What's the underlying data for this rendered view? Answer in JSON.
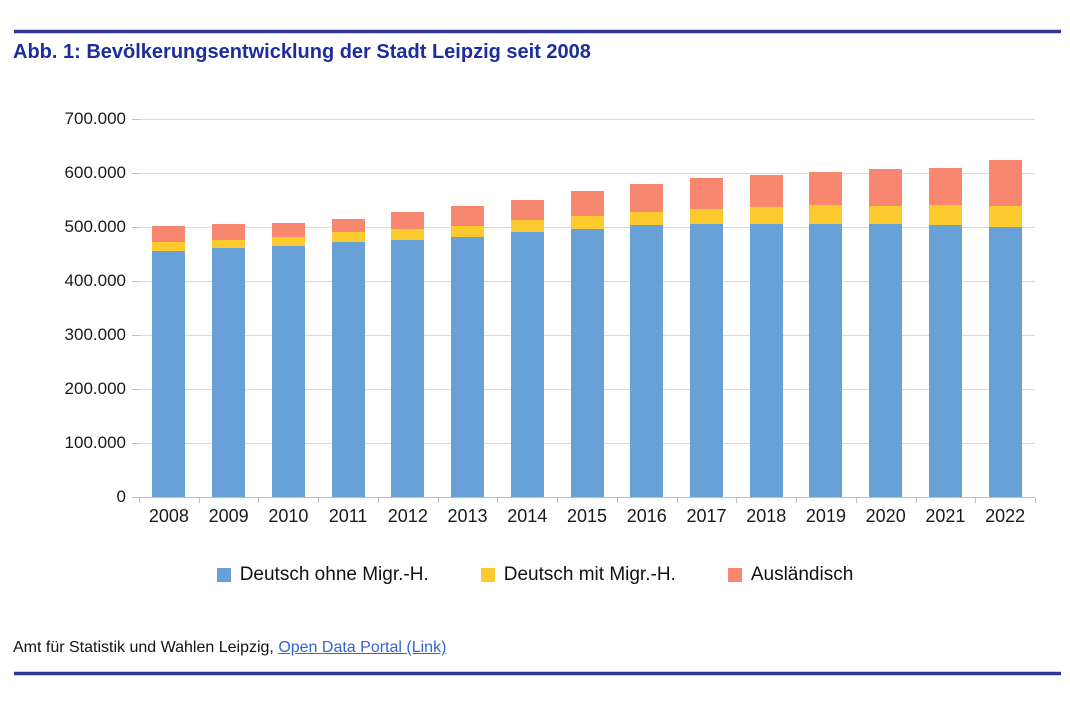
{
  "header": {
    "title": "Abb. 1: Bevölkerungsentwicklung der Stadt Leipzig seit 2008"
  },
  "chart_data": {
    "type": "bar",
    "stacked": true,
    "title": "Bevölkerungsentwicklung der Stadt Leipzig seit 2008",
    "categories": [
      "2008",
      "2009",
      "2010",
      "2011",
      "2012",
      "2013",
      "2014",
      "2015",
      "2016",
      "2017",
      "2018",
      "2019",
      "2020",
      "2021",
      "2022"
    ],
    "series": [
      {
        "name": "Deutsch ohne Migr.-H.",
        "color": "#68A1D8",
        "values": [
          456000,
          461000,
          465000,
          472000,
          476000,
          481000,
          490000,
          497000,
          503000,
          505000,
          506000,
          506000,
          506000,
          504000,
          501000
        ]
      },
      {
        "name": "Deutsch mit Migr.-H.",
        "color": "#FECB2E",
        "values": [
          16000,
          15000,
          17000,
          19000,
          20000,
          21000,
          23000,
          23000,
          24000,
          29000,
          32000,
          34000,
          33000,
          36000,
          38000
        ]
      },
      {
        "name": "Ausländisch",
        "color": "#F7886F",
        "values": [
          30000,
          29000,
          26000,
          23000,
          32000,
          38000,
          38000,
          47000,
          52000,
          56000,
          58000,
          62000,
          68000,
          70000,
          86000
        ]
      }
    ],
    "totals": [
      502000,
      505000,
      508000,
      514000,
      528000,
      540000,
      551000,
      567000,
      579000,
      590000,
      596000,
      602000,
      607000,
      610000,
      625000
    ],
    "xlabel": "",
    "ylabel": "",
    "ylim": [
      0,
      700000
    ],
    "y_tick_step": 100000,
    "y_tick_labels": [
      "0",
      "100.000",
      "200.000",
      "300.000",
      "400.000",
      "500.000",
      "600.000",
      "700.000"
    ],
    "grid": true,
    "legend_position": "bottom"
  },
  "footer": {
    "source_text": "Amt für Statistik und Wahlen Leipzig, ",
    "link_text": "Open Data Portal (Link)"
  },
  "colors": {
    "accent_navy": "#1F2D9B",
    "rule_navy": "#2A3795",
    "link_blue": "#3565D0",
    "gridline": "#D9D9D9",
    "axis_line": "#BFBFBF",
    "axis_text": "#1A1A1A"
  }
}
